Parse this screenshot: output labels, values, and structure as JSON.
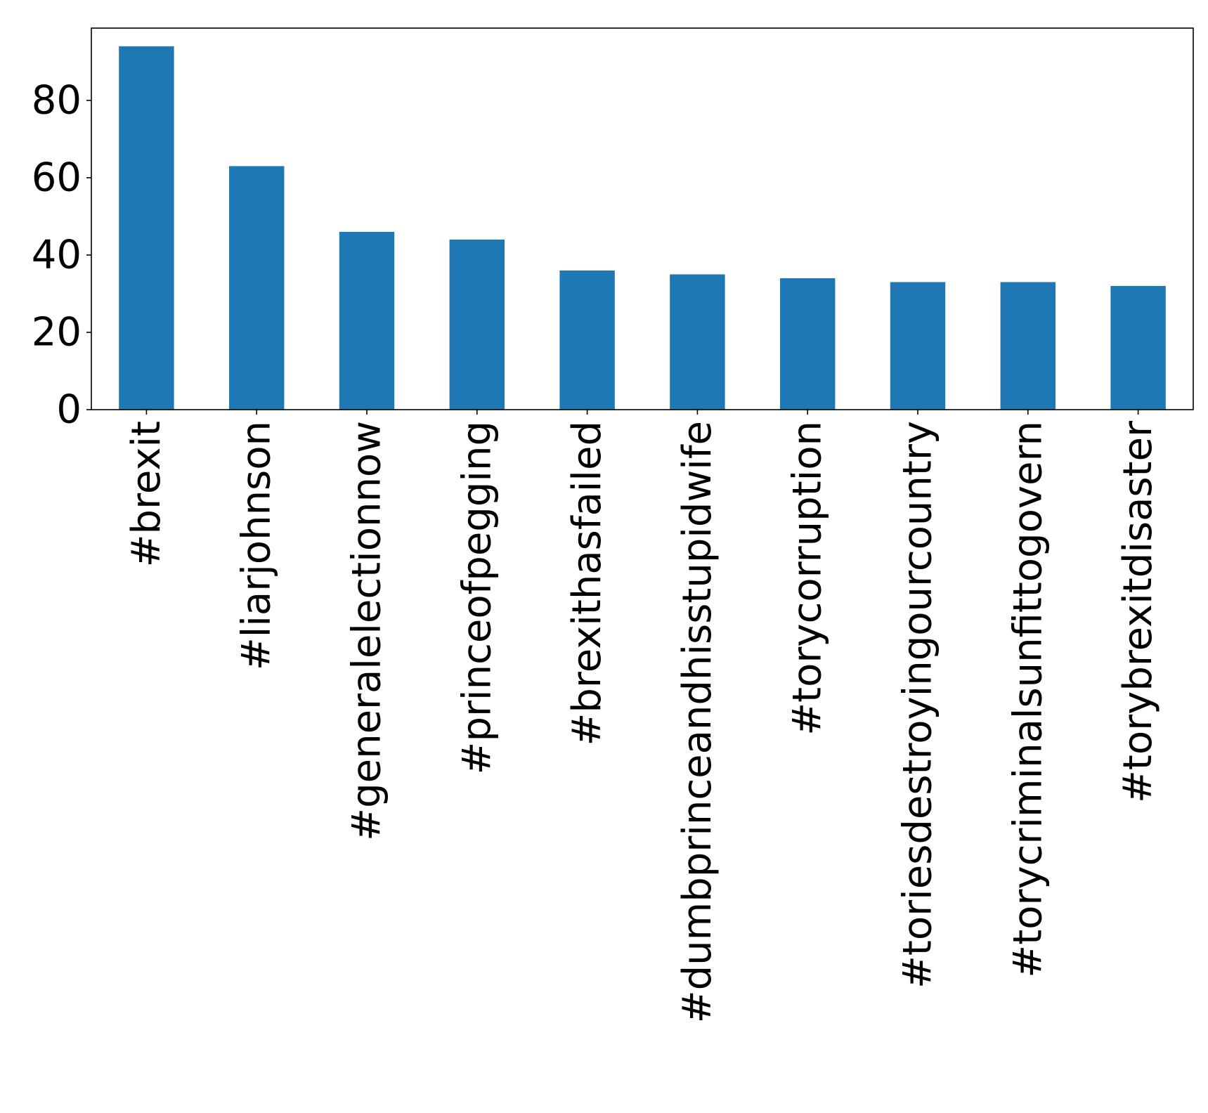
{
  "chart_data": {
    "type": "bar",
    "title": "",
    "xlabel": "",
    "ylabel": "",
    "categories": [
      "#brexit",
      "#liarjohnson",
      "#generalelectionnow",
      "#princeofpegging",
      "#brexithasfailed",
      "#dumbprinceandhisstupidwife",
      "#torycorruption",
      "#toriesdestroyingourcountry",
      "#torycriminalsunfittogovern",
      "#torybrexitdisaster"
    ],
    "values": [
      94,
      63,
      46,
      44,
      36,
      35,
      34,
      33,
      33,
      32
    ],
    "ylim": [
      0,
      98.7
    ],
    "yticks": [
      0,
      20,
      40,
      60,
      80
    ],
    "ytick_labels": [
      "0",
      "20",
      "40",
      "60",
      "80"
    ],
    "grid": false,
    "legend": "none",
    "bar_color": "#1f77b4"
  }
}
